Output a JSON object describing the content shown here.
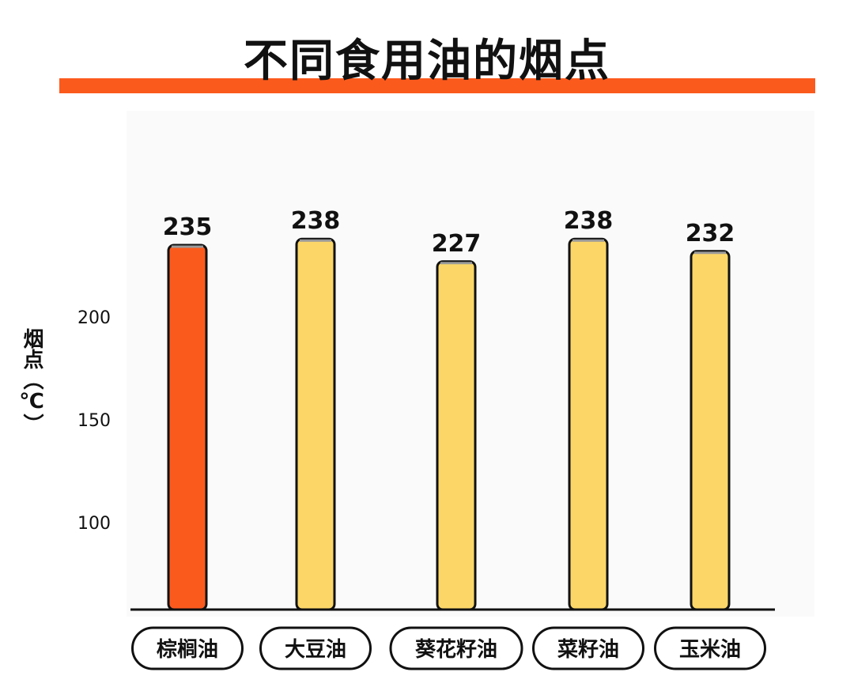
{
  "colors": {
    "accent": "#fb5a1d",
    "highlight_bar": "#fb5a1d",
    "normal_bar": "#fcd767",
    "axis_gradient_top": "#fbbf7a",
    "axis_gradient_bottom": "#e81a10"
  },
  "chart_data": {
    "type": "bar",
    "title": "不同食用油的烟点",
    "xlabel": "",
    "ylabel": "烟点（℃）",
    "categories": [
      "棕榈油",
      "大豆油",
      "葵花籽油",
      "菜籽油",
      "玉米油"
    ],
    "values": [
      235,
      238,
      227,
      238,
      232
    ],
    "value_labels": [
      "235",
      "238",
      "227",
      "238",
      "232"
    ],
    "highlight_index": 0,
    "yticks": [
      100,
      150,
      200
    ],
    "ytick_labels": [
      "100",
      "150",
      "200"
    ],
    "grid": false,
    "legend": "none"
  }
}
